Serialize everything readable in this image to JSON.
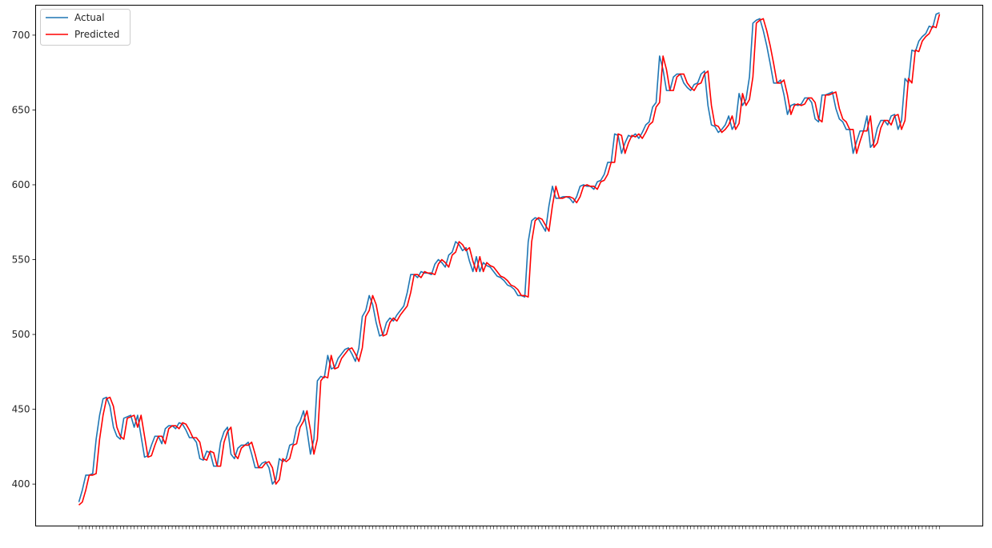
{
  "chart_data": {
    "type": "line",
    "title": "",
    "xlabel": "",
    "ylabel": "",
    "ylim": [
      372,
      720
    ],
    "yticks": [
      400,
      450,
      500,
      550,
      600,
      650,
      700
    ],
    "grid": false,
    "legend": {
      "placement": "top-left"
    },
    "series": [
      {
        "name": "Actual",
        "color": "#1f77b4",
        "values": [
          388,
          396,
          406,
          406,
          407,
          430,
          446,
          457,
          458,
          452,
          438,
          432,
          430,
          444,
          445,
          446,
          438,
          446,
          432,
          418,
          419,
          426,
          432,
          432,
          427,
          437,
          439,
          439,
          437,
          441,
          440,
          436,
          431,
          431,
          428,
          417,
          416,
          422,
          421,
          412,
          412,
          428,
          435,
          438,
          420,
          417,
          424,
          426,
          426,
          428,
          420,
          411,
          411,
          414,
          415,
          411,
          400,
          403,
          417,
          415,
          417,
          426,
          427,
          438,
          442,
          449,
          436,
          420,
          430,
          469,
          472,
          471,
          486,
          477,
          478,
          484,
          487,
          490,
          491,
          487,
          482,
          491,
          512,
          516,
          526,
          520,
          508,
          499,
          500,
          508,
          511,
          509,
          513,
          516,
          519,
          528,
          540,
          540,
          538,
          542,
          541,
          541,
          540,
          547,
          550,
          548,
          545,
          553,
          555,
          562,
          560,
          556,
          558,
          549,
          542,
          552,
          542,
          548,
          546,
          545,
          542,
          539,
          538,
          536,
          533,
          532,
          530,
          526,
          526,
          525,
          562,
          576,
          578,
          577,
          573,
          569,
          586,
          599,
          591,
          591,
          592,
          592,
          591,
          588,
          592,
          599,
          600,
          599,
          599,
          597,
          602,
          603,
          607,
          615,
          615,
          634,
          633,
          621,
          628,
          633,
          632,
          634,
          631,
          635,
          640,
          642,
          652,
          655,
          686,
          677,
          663,
          663,
          672,
          674,
          674,
          668,
          665,
          663,
          667,
          668,
          674,
          676,
          653,
          640,
          639,
          635,
          637,
          640,
          646,
          637,
          641,
          661,
          653,
          657,
          672,
          708,
          710,
          711,
          703,
          693,
          681,
          668,
          668,
          670,
          660,
          647,
          653,
          654,
          653,
          654,
          658,
          658,
          655,
          644,
          642,
          660,
          660,
          661,
          662,
          651,
          644,
          642,
          637,
          637,
          621,
          629,
          636,
          636,
          646,
          625,
          628,
          638,
          643,
          643,
          640,
          646,
          647,
          637,
          643,
          671,
          668,
          690,
          689,
          696,
          699,
          701,
          706,
          705,
          714,
          715
        ]
      },
      {
        "name": "Predicted",
        "color": "#ff0000",
        "values": [
          386,
          388,
          396,
          406,
          406,
          407,
          430,
          446,
          457,
          458,
          452,
          438,
          432,
          430,
          444,
          445,
          446,
          438,
          446,
          432,
          418,
          419,
          426,
          432,
          432,
          427,
          437,
          439,
          439,
          437,
          441,
          440,
          436,
          431,
          431,
          428,
          417,
          416,
          422,
          421,
          412,
          412,
          428,
          435,
          438,
          420,
          417,
          424,
          426,
          426,
          428,
          420,
          411,
          411,
          414,
          415,
          411,
          400,
          403,
          417,
          415,
          417,
          426,
          427,
          438,
          442,
          449,
          436,
          420,
          430,
          469,
          472,
          471,
          486,
          477,
          478,
          484,
          487,
          490,
          491,
          487,
          482,
          491,
          512,
          516,
          526,
          520,
          508,
          499,
          500,
          508,
          511,
          509,
          513,
          516,
          519,
          528,
          540,
          540,
          538,
          542,
          541,
          541,
          540,
          547,
          550,
          548,
          545,
          553,
          555,
          562,
          560,
          556,
          558,
          549,
          542,
          552,
          542,
          548,
          546,
          545,
          542,
          539,
          538,
          536,
          533,
          532,
          530,
          526,
          526,
          525,
          562,
          576,
          578,
          577,
          573,
          569,
          586,
          599,
          591,
          591,
          592,
          592,
          591,
          588,
          592,
          599,
          600,
          599,
          599,
          597,
          602,
          603,
          607,
          615,
          615,
          634,
          633,
          621,
          628,
          633,
          632,
          634,
          631,
          635,
          640,
          642,
          652,
          655,
          686,
          677,
          663,
          663,
          672,
          674,
          674,
          668,
          665,
          663,
          667,
          668,
          674,
          676,
          653,
          640,
          639,
          635,
          637,
          640,
          646,
          637,
          641,
          661,
          653,
          657,
          672,
          708,
          710,
          711,
          703,
          693,
          681,
          668,
          668,
          670,
          660,
          647,
          653,
          654,
          653,
          654,
          658,
          658,
          655,
          644,
          642,
          660,
          660,
          661,
          662,
          651,
          644,
          642,
          637,
          637,
          621,
          629,
          636,
          636,
          646,
          625,
          628,
          638,
          643,
          643,
          640,
          646,
          647,
          637,
          643,
          671,
          668,
          690,
          689,
          696,
          699,
          701,
          706,
          705,
          714
        ]
      }
    ]
  }
}
